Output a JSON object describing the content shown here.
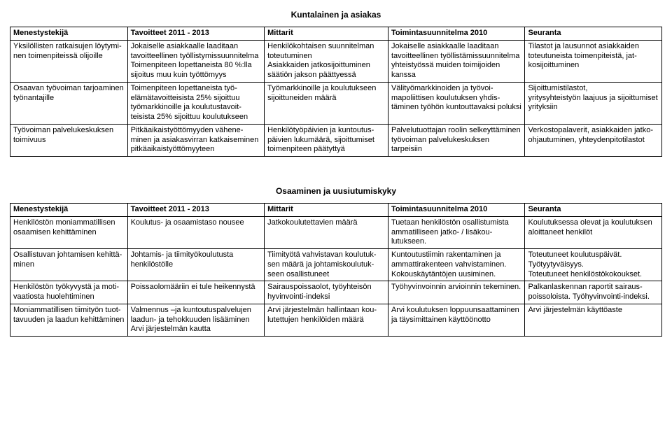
{
  "colors": {
    "text": "#000000",
    "background": "#ffffff",
    "border": "#000000"
  },
  "typography": {
    "body_font": "Arial",
    "body_size_pt": 8,
    "title_size_pt": 9,
    "title_weight": "bold",
    "header_weight": "bold"
  },
  "sections": {
    "top": {
      "title": "Kuntalainen ja asiakas",
      "headers": [
        "Menestystekijä",
        "Tavoitteet 2011 - 2013",
        "Mittarit",
        "Toimintasuunnitelma 2010",
        "Seuranta"
      ],
      "rows": [
        [
          "Yksilöllisten ratkaisujen löytymi­nen toimenpiteissä olijoille",
          "Jokaiselle asiakkaalle laaditaan tavoitteellinen työllistymissuunni­telma\nToimenpiteen lopettaneista 80 %:lla sijoitus muu kuin työttö­myys",
          "Henkilökohtaisen suunnitelman toteutuminen\nAsiakkaiden jatkosijoittuminen säätiön jakson päättyessä",
          "Jokaiselle asiakkaalle laaditaan tavoitteellinen työllistämissuunni­telma yhteistyössä muiden toimi­joiden kanssa",
          "Tilastot ja lausunnot asiakkaiden toteutuneista toimenpiteistä, jat­kosijoittuminen"
        ],
        [
          "Osaavan työvoiman tarjoaminen työnantajille",
          "Toimenpiteen lopettaneista työ­elämätavoitteisista 25% sijoittuu työmarkkinoille ja koulutustavoit­teisista 25% sijoittuu koulutuk­seen",
          "Työmarkkinoille ja koulutukseen sijoittuneiden määrä",
          "Välityömarkkinoiden ja työvoi­mapoliittisen koulutuksen yhdis­täminen työhön kuntouttavaksi poluksi",
          "Sijoittumistilastot,\nyritysyhteistyön laajuus ja sijoit­tumiset yrityksiin"
        ],
        [
          "Työvoiman palvelukeskuksen toi­mivuus",
          "Pitkäaikaistyöttömyyden vähene­minen ja asiakasvirran katkaise­minen pitkäaikaistyöttömyyteen",
          "Henkilötyöpäivien ja kuntoutus­päivien lukumäärä, sijoittumiset toimenpiteen päätyttyä",
          "Palvelutuottajan roolin selkeyttä­minen työvoiman palvelukeskuk­sen tarpeisiin",
          "Verkostopalaverit, asiakkaiden jatko-ohjautuminen, yhteydenpi­totilastot"
        ]
      ]
    },
    "bottom": {
      "title": "Osaaminen ja uusiutumiskyky",
      "headers": [
        "Menestystekijä",
        "Tavoitteet 2011 - 2013",
        "Mittarit",
        "Toimintasuunnitelma 2010",
        "Seuranta"
      ],
      "rows": [
        [
          "Henkilöstön moniammatillisen osaamisen kehittäminen",
          "Koulutus- ja osaamistaso nousee",
          "Jatkokoulutettavien määrä",
          "Tuetaan henkilöstön osallistumis­ta ammatilliseen jatko- / lisäkou­lutukseen.",
          "Koulutuksessa olevat ja koulutuk­sen aloittaneet henkilöt"
        ],
        [
          "Osallistuvan johtamisen kehittä­minen",
          "Johtamis- ja tiimityökoulutusta henkilöstölle",
          "Tiimityötä vahvistavan koulutuk­sen määrä ja johtamiskoulutuk­seen osallistuneet",
          "Kuntoutustiimin rakentaminen ja ammattirakenteen vahvistaminen. Kokouskäytäntöjen uusiminen.",
          "Toteutuneet koulutuspäivät. Työtyytyväisyys.\nToteutuneet henkilöstökokoukset."
        ],
        [
          "Henkilöstön työkyvystä ja moti­vaatiosta huolehtiminen",
          "Poissaolomääriin ei tule heiken­nystä",
          "Sairauspoissaolot, työyhteisön hyvinvointi-indeksi",
          "Työhyvinvoinnin arvioinnin teke­minen.",
          "Palkanlaskennan raportit sairaus­poissoloista. Työhyvinvointi-in­deksi."
        ],
        [
          "Moniammatillisen tiimityön tuot­tavuuden ja laadun kehittäminen",
          "Valmennus –ja kuntoutuspalvelu­jen laadun- ja tehokkuuden lisää­minen Arvi järjestelmän kautta",
          "Arvi järjestelmän hallintaan kou­lutettujen henkilöiden määrä",
          "Arvi koulutuksen loppuunsaatta­minen ja täysimittainen käyttöön­otto",
          "Arvi järjestelmän käyttöaste"
        ]
      ]
    }
  }
}
